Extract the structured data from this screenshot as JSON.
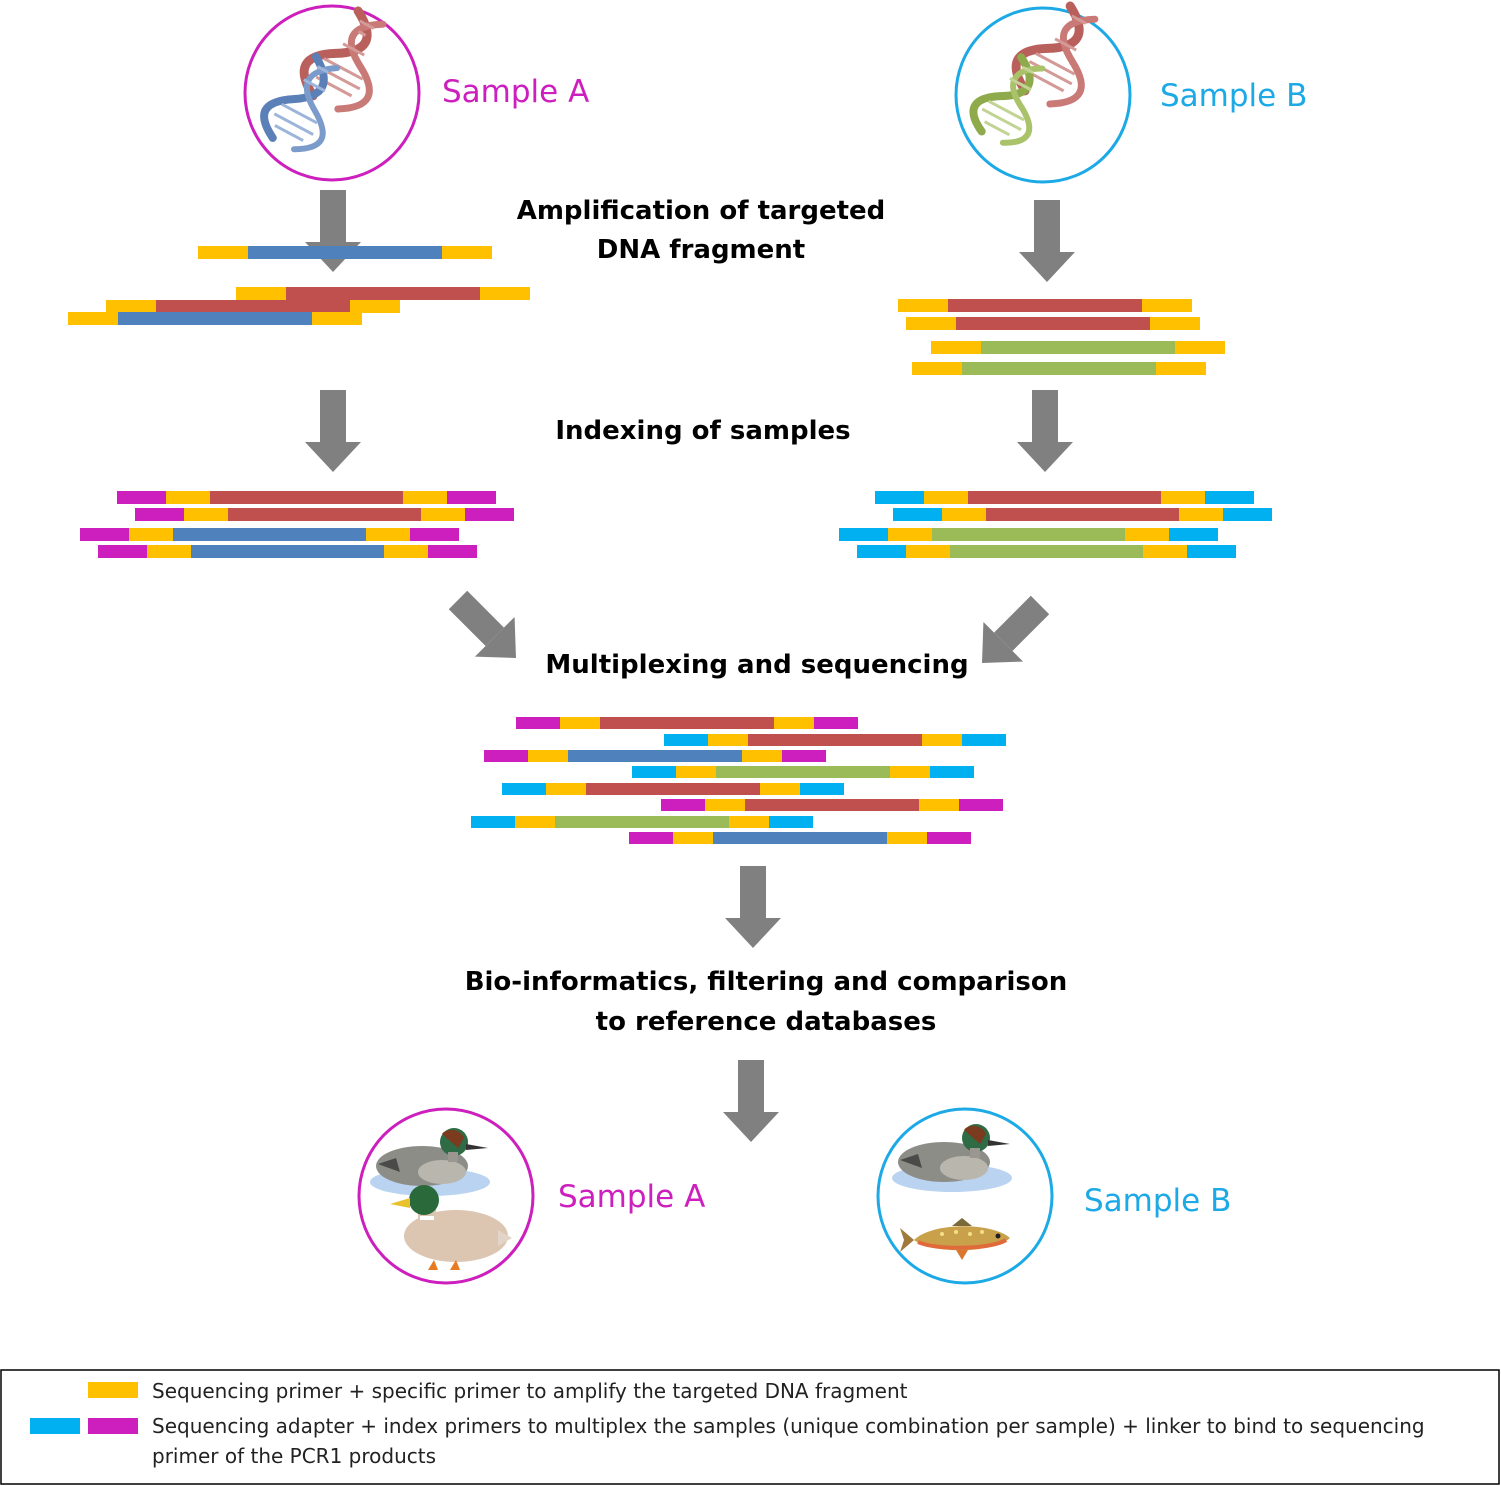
{
  "colors": {
    "primer": "#ffc000",
    "adapter_blue": "#00b0f0",
    "adapter_magenta": "#cc1fbd",
    "dna_red": "#c0504d",
    "dna_blue": "#4f81bd",
    "dna_green": "#9bbb59",
    "arrow": "#808080",
    "sample_a": "#cc1fbd",
    "sample_b": "#1ca9e6"
  },
  "samples": {
    "a_top": {
      "label": "Sample A",
      "icons": [
        "dna-red-helix-icon",
        "dna-blue-helix-icon"
      ]
    },
    "b_top": {
      "label": "Sample B",
      "icons": [
        "dna-red-helix-icon",
        "dna-green-helix-icon"
      ]
    },
    "a_bottom": {
      "label": "Sample A",
      "icons": [
        "teal-duck-icon",
        "mallard-duck-icon"
      ]
    },
    "b_bottom": {
      "label": "Sample B",
      "icons": [
        "teal-duck-icon",
        "trout-fish-icon"
      ]
    }
  },
  "steps": {
    "amplification": [
      "Amplification of targeted",
      "DNA fragment"
    ],
    "indexing": [
      "Indexing of samples"
    ],
    "multiplexing": [
      "Multiplexing and sequencing"
    ],
    "bioinformatics": [
      "Bio-informatics, filtering and comparison",
      "to reference databases"
    ]
  },
  "fragments": {
    "amplified_a": [
      [
        "primer",
        "dna_red",
        "primer"
      ],
      [
        "primer",
        "dna_red",
        "primer"
      ],
      [
        "primer",
        "dna_blue",
        "primer"
      ],
      [
        "primer",
        "dna_blue",
        "primer"
      ]
    ],
    "amplified_b": [
      [
        "primer",
        "dna_red",
        "primer"
      ],
      [
        "primer",
        "dna_red",
        "primer"
      ],
      [
        "primer",
        "dna_green",
        "primer"
      ],
      [
        "primer",
        "dna_green",
        "primer"
      ]
    ],
    "indexed_a": [
      [
        "adapter_magenta",
        "primer",
        "dna_red",
        "primer",
        "adapter_magenta"
      ],
      [
        "adapter_magenta",
        "primer",
        "dna_red",
        "primer",
        "adapter_magenta"
      ],
      [
        "adapter_magenta",
        "primer",
        "dna_blue",
        "primer",
        "adapter_magenta"
      ],
      [
        "adapter_magenta",
        "primer",
        "dna_blue",
        "primer",
        "adapter_magenta"
      ]
    ],
    "indexed_b": [
      [
        "adapter_blue",
        "primer",
        "dna_red",
        "primer",
        "adapter_blue"
      ],
      [
        "adapter_blue",
        "primer",
        "dna_red",
        "primer",
        "adapter_blue"
      ],
      [
        "adapter_blue",
        "primer",
        "dna_green",
        "primer",
        "adapter_blue"
      ],
      [
        "adapter_blue",
        "primer",
        "dna_green",
        "primer",
        "adapter_blue"
      ]
    ],
    "multiplexed": [
      [
        "adapter_magenta",
        "primer",
        "dna_red",
        "primer",
        "adapter_magenta"
      ],
      [
        "adapter_blue",
        "primer",
        "dna_red",
        "primer",
        "adapter_blue"
      ],
      [
        "adapter_magenta",
        "primer",
        "dna_blue",
        "primer",
        "adapter_magenta"
      ],
      [
        "adapter_blue",
        "primer",
        "dna_green",
        "primer",
        "adapter_blue"
      ],
      [
        "adapter_blue",
        "primer",
        "dna_red",
        "primer",
        "adapter_blue"
      ],
      [
        "adapter_magenta",
        "primer",
        "dna_red",
        "primer",
        "adapter_magenta"
      ],
      [
        "adapter_blue",
        "primer",
        "dna_green",
        "primer",
        "adapter_blue"
      ],
      [
        "adapter_magenta",
        "primer",
        "dna_blue",
        "primer",
        "adapter_magenta"
      ]
    ]
  },
  "legend": {
    "primer_text": "Sequencing primer + specific primer to amplify the targeted DNA fragment",
    "adapter_text_line1": "Sequencing adapter + index primers  to multiplex the samples (unique combination per sample) + linker to bind to sequencing",
    "adapter_text_line2": "primer of the PCR1 products"
  }
}
